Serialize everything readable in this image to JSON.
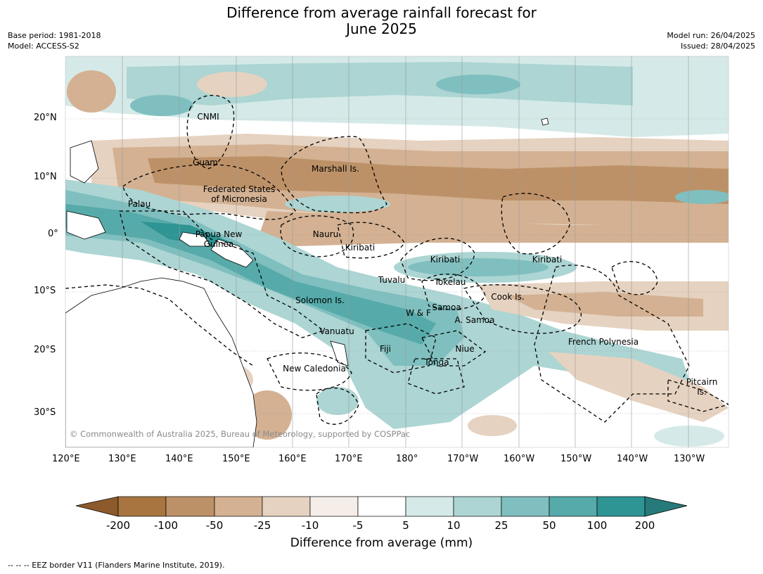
{
  "header": {
    "title_line1": "Difference from average rainfall forecast for",
    "title_line2": "June 2025",
    "base_period": "Base period: 1981-2018",
    "model": "Model: ACCESS-S2",
    "model_run": "Model run: 26/04/2025",
    "issued": "Issued: 28/04/2025"
  },
  "map": {
    "lat_ticks": [
      "20°N",
      "10°N",
      "0°",
      "10°S",
      "20°S",
      "30°S"
    ],
    "lon_ticks": [
      "120°E",
      "130°E",
      "140°E",
      "150°E",
      "160°E",
      "170°E",
      "180°",
      "170°W",
      "160°W",
      "150°W",
      "140°W",
      "130°W"
    ],
    "regions": [
      "CNMI",
      "Guam",
      "Marshall Is.",
      "Federated States",
      "of Micronesia",
      "Palau",
      "Papua New",
      "Guinea",
      "Nauru",
      "Kiribati",
      "Kiribati",
      "Kiribati",
      "Tuvalu",
      "Tokelau",
      "Cook Is.",
      "Solomon Is.",
      "W & F",
      "Samoa",
      "A. Samoa",
      "Vanuatu",
      "Fiji",
      "Niue",
      "Tonga",
      "French Polynesia",
      "New Caledonia",
      "Pitcairn",
      "Is."
    ],
    "copyright": "© Commonwealth of Australia 2025, Bureau of Meteorology, supported by COSPPac"
  },
  "colorbar": {
    "labels": [
      "-200",
      "-100",
      "-50",
      "-25",
      "-10",
      "-5",
      "5",
      "10",
      "25",
      "50",
      "100",
      "200"
    ],
    "colors": [
      "#8c5a2b",
      "#a87540",
      "#bd9167",
      "#d3b192",
      "#e6d2c0",
      "#f5ede8",
      "#ffffff",
      "#d5eae8",
      "#acd5d3",
      "#80bfbf",
      "#56aaaa",
      "#2e9594",
      "#267a7a"
    ],
    "title": "Difference from average (mm)"
  },
  "footnote": "-- -- -- EEZ border V11 (Flanders Marine Institute, 2019)."
}
